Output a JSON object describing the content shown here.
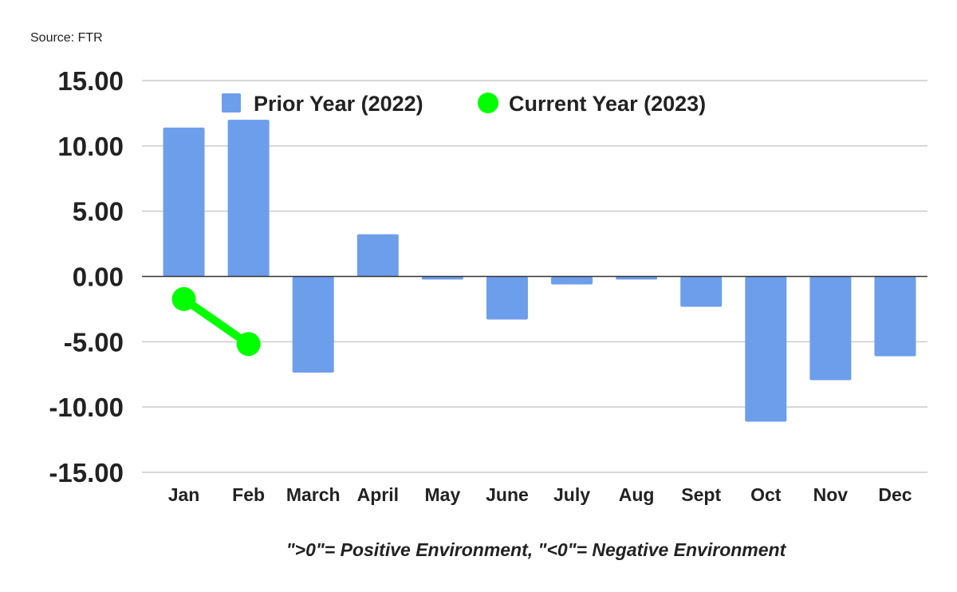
{
  "chart_data": {
    "type": "bar",
    "source": "Source: FTR",
    "note": "\">0\"= Positive Environment, \"<0\"= Negative Environment",
    "categories": [
      "Jan",
      "Feb",
      "March",
      "April",
      "May",
      "June",
      "July",
      "Aug",
      "Sept",
      "Oct",
      "Nov",
      "Dec"
    ],
    "series": [
      {
        "name": "Prior Year (2022)",
        "type": "bar",
        "color": "#6d9eeb",
        "values": [
          11.4,
          12.0,
          -7.36,
          3.23,
          -0.24,
          -3.3,
          -0.61,
          -0.24,
          -2.32,
          -11.12,
          -7.94,
          -6.11
        ]
      },
      {
        "name": "Current Year (2023)",
        "type": "line",
        "color": "#00ff00",
        "values": [
          -1.73,
          -5.18,
          null,
          null,
          null,
          null,
          null,
          null,
          null,
          null,
          null,
          null
        ]
      }
    ],
    "ylim": [
      -15,
      15
    ],
    "yticks": [
      "15.00",
      "10.00",
      "5.00",
      "0.00",
      "-5.00",
      "-10.00",
      "-15.00"
    ],
    "grid": true,
    "legend": "top"
  }
}
